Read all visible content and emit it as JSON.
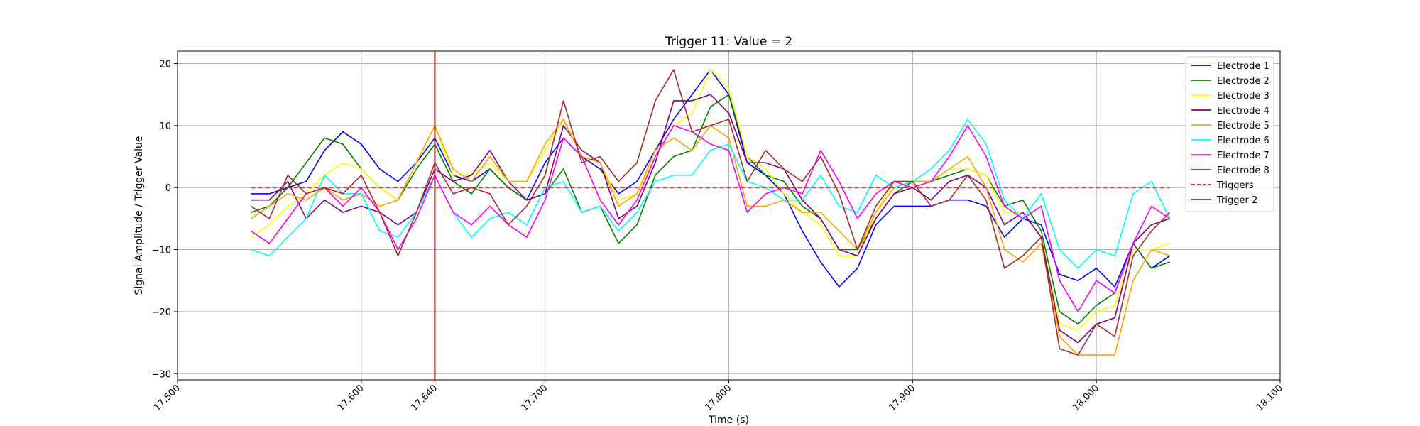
{
  "chart_data": {
    "type": "line",
    "title": "Trigger 11: Value = 2",
    "xlabel": "Time (s)",
    "ylabel": "Signal Amplitude / Trigger Value",
    "xlim": [
      17.5,
      18.1
    ],
    "ylim": [
      -31,
      22
    ],
    "grid": true,
    "legend_position": "top-right",
    "x_ticks": [
      {
        "value": 17.5,
        "label": "17.500"
      },
      {
        "value": 17.6,
        "label": "17.600"
      },
      {
        "value": 17.64,
        "label": "17.640"
      },
      {
        "value": 17.7,
        "label": "17.700"
      },
      {
        "value": 17.8,
        "label": "17.800"
      },
      {
        "value": 17.9,
        "label": "17.900"
      },
      {
        "value": 18.0,
        "label": "18.000"
      },
      {
        "value": 18.1,
        "label": "18.100"
      }
    ],
    "y_ticks": [
      {
        "value": 20,
        "label": "20"
      },
      {
        "value": 10,
        "label": "10"
      },
      {
        "value": 0,
        "label": "0"
      },
      {
        "value": -10,
        "label": "−10"
      },
      {
        "value": -20,
        "label": "−20"
      },
      {
        "value": -30,
        "label": "−30"
      }
    ],
    "x": [
      17.54,
      17.55,
      17.56,
      17.57,
      17.58,
      17.59,
      17.6,
      17.61,
      17.62,
      17.63,
      17.64,
      17.65,
      17.66,
      17.67,
      17.68,
      17.69,
      17.7,
      17.71,
      17.72,
      17.73,
      17.74,
      17.75,
      17.76,
      17.77,
      17.78,
      17.79,
      17.8,
      17.81,
      17.82,
      17.83,
      17.84,
      17.85,
      17.86,
      17.87,
      17.88,
      17.89,
      17.9,
      17.91,
      17.92,
      17.93,
      17.94,
      17.95,
      17.96,
      17.97,
      17.98,
      17.99,
      18.0,
      18.01,
      18.02,
      18.03,
      18.04
    ],
    "series": [
      {
        "name": "Electrode 1",
        "color": "#0000ff",
        "dash": false,
        "values": [
          -1,
          -1,
          0,
          1,
          6,
          9,
          7,
          3,
          1,
          4,
          8,
          2,
          1,
          3,
          0,
          -2,
          4,
          8,
          5,
          3,
          -1,
          1,
          6,
          11,
          15,
          19,
          15,
          4,
          2,
          -1,
          -7,
          -12,
          -16,
          -13,
          -6,
          -3,
          -3,
          -3,
          -2,
          -2,
          -3,
          -8,
          -5,
          -6,
          -14,
          -15,
          -13,
          -16,
          -9,
          -13,
          -11
        ]
      },
      {
        "name": "Electrode 2",
        "color": "#008000",
        "dash": false,
        "values": [
          -4,
          -3,
          0,
          4,
          8,
          7,
          3,
          0,
          -2,
          3,
          7,
          1,
          -1,
          3,
          0,
          -2,
          -1,
          3,
          -4,
          -3,
          -9,
          -6,
          2,
          5,
          6,
          13,
          15,
          5,
          2,
          1,
          -3,
          -5,
          -10,
          -10,
          -5,
          -1,
          1,
          1,
          2,
          3,
          2,
          -3,
          -2,
          -7,
          -20,
          -22,
          -19,
          -17,
          -9,
          -13,
          -12
        ]
      },
      {
        "name": "Electrode 3",
        "color": "#ffff00",
        "dash": false,
        "values": [
          -8,
          -6,
          -3,
          -1,
          2,
          4,
          3,
          0,
          -2,
          4,
          10,
          2,
          2,
          4,
          1,
          1,
          6,
          11,
          5,
          4,
          -2,
          -1,
          5,
          10,
          12,
          19,
          16,
          5,
          3,
          -1,
          -4,
          -6,
          -11,
          -11,
          -4,
          1,
          1,
          1,
          3,
          3,
          2,
          -4,
          -4,
          -8,
          -22,
          -23,
          -20,
          -19,
          -10,
          -10,
          -9
        ]
      },
      {
        "name": "Electrode 4",
        "color": "#800080",
        "dash": false,
        "values": [
          -2,
          -2,
          1,
          -5,
          -2,
          -4,
          -3,
          -4,
          -6,
          -4,
          3,
          1,
          2,
          6,
          1,
          -2,
          -1,
          10,
          6,
          4,
          -5,
          -3,
          4,
          14,
          14,
          15,
          12,
          4,
          4,
          3,
          -2,
          -5,
          -10,
          -11,
          -5,
          -1,
          0,
          -2,
          1,
          2,
          0,
          -6,
          -4,
          -8,
          -23,
          -25,
          -22,
          -21,
          -9,
          -6,
          -5
        ]
      },
      {
        "name": "Electrode 5",
        "color": "#ffa500",
        "dash": false,
        "values": [
          -5,
          -3,
          -1,
          -2,
          0,
          -2,
          -1,
          -3,
          -2,
          4,
          10,
          3,
          1,
          5,
          1,
          1,
          7,
          11,
          5,
          4,
          -3,
          -1,
          6,
          8,
          6,
          10,
          8,
          -3,
          -3,
          -2,
          -4,
          -4,
          -7,
          -10,
          -4,
          0,
          1,
          1,
          3,
          5,
          0,
          -10,
          -12,
          -9,
          -24,
          -27,
          -27,
          -27,
          -15,
          -10,
          -11
        ]
      },
      {
        "name": "Electrode 6",
        "color": "#00ffff",
        "dash": false,
        "values": [
          -10,
          -11,
          -8,
          -5,
          2,
          -1,
          -1,
          -7,
          -8,
          -4,
          2,
          -4,
          -8,
          -5,
          -4,
          -6,
          0,
          1,
          -4,
          -3,
          -7,
          -4,
          1,
          2,
          2,
          6,
          7,
          1,
          0,
          -2,
          -2,
          2,
          -3,
          -4,
          2,
          0,
          1,
          3,
          6,
          11,
          7,
          -2,
          -5,
          -1,
          -10,
          -13,
          -10,
          -11,
          -1,
          1,
          -5
        ]
      },
      {
        "name": "Electrode 7",
        "color": "#ff00ff",
        "dash": false,
        "values": [
          -7,
          -9,
          -5,
          -1,
          0,
          -3,
          0,
          -4,
          -10,
          -5,
          2,
          -4,
          -6,
          -3,
          -6,
          -8,
          -2,
          8,
          5,
          -2,
          -6,
          -2,
          5,
          10,
          9,
          7,
          6,
          -4,
          -1,
          0,
          -1,
          6,
          1,
          -5,
          -1,
          1,
          0,
          1,
          5,
          10,
          5,
          -3,
          -5,
          -3,
          -15,
          -20,
          -15,
          -17,
          -9,
          -3,
          -5
        ]
      },
      {
        "name": "Electrode 8",
        "color": "#a52a2a",
        "dash": false,
        "values": [
          -3,
          -5,
          2,
          -1,
          0,
          -1,
          2,
          -4,
          -11,
          -4,
          4,
          -1,
          0,
          -1,
          -6,
          -3,
          2,
          14,
          4,
          5,
          1,
          4,
          14,
          19,
          9,
          10,
          11,
          1,
          6,
          3,
          1,
          5,
          -1,
          -10,
          -3,
          1,
          1,
          -3,
          -2,
          2,
          -2,
          -13,
          -11,
          -8,
          -26,
          -27,
          -22,
          -24,
          -11,
          -7,
          -4
        ]
      }
    ],
    "triggers": {
      "name": "Triggers",
      "color": "#ff0000",
      "dash": true,
      "x_start": 17.54,
      "x_end": 18.04,
      "value": 0
    },
    "trigger_2": {
      "name": "Trigger 2",
      "color": "#ff0000",
      "x": 17.64
    }
  }
}
